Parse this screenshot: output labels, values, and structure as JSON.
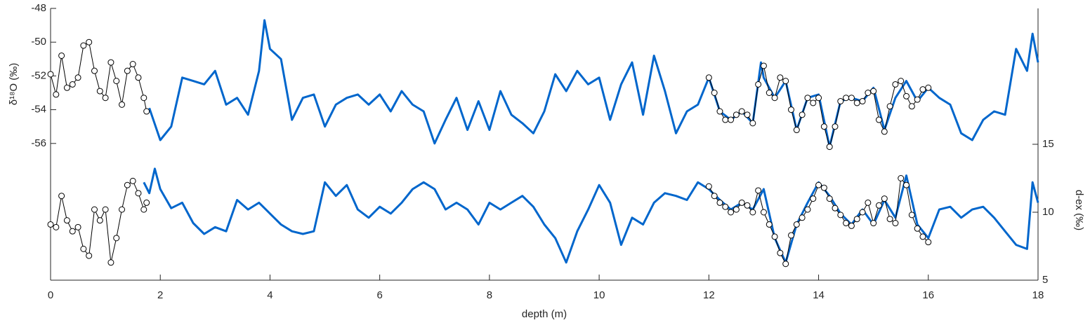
{
  "chart_data": {
    "type": "line",
    "xlabel": "depth (m)",
    "ylabel": "δ¹⁸O (‰)",
    "y2label": "d-ex (‰)",
    "xlim": [
      0,
      18
    ],
    "xticks": [
      0,
      2,
      4,
      6,
      8,
      10,
      12,
      14,
      16,
      18
    ],
    "ylim": [
      -64.1,
      -48
    ],
    "yticks": [
      -56,
      -54,
      -52,
      -50,
      -48
    ],
    "y2lim": [
      5,
      25
    ],
    "y2ticks": [
      5,
      10,
      15
    ],
    "series": [
      {
        "color": "#0066cc",
        "marker": "none",
        "x": [
          1.8,
          2.0,
          2.2,
          2.4,
          2.6,
          2.8,
          3.0,
          3.2,
          3.4,
          3.6,
          3.8,
          3.9,
          4.0,
          4.2,
          4.4,
          4.6,
          4.8,
          5.0,
          5.2,
          5.4,
          5.6,
          5.8,
          6.0,
          6.2,
          6.4,
          6.6,
          6.8,
          7.0,
          7.2,
          7.4,
          7.6,
          7.8,
          8.0,
          8.2,
          8.4,
          8.6,
          8.8,
          9.0,
          9.2,
          9.4,
          9.6,
          9.8,
          10.0,
          10.2,
          10.4,
          10.6,
          10.8,
          11.0,
          11.2,
          11.4,
          11.6,
          11.8,
          12.0,
          12.2,
          12.4,
          12.6,
          12.8,
          12.95,
          13.0,
          13.2,
          13.4,
          13.6,
          13.8,
          14.0,
          14.2,
          14.4,
          14.6,
          14.8,
          15.0,
          15.2,
          15.4,
          15.6,
          15.8,
          16.0,
          16.2,
          16.4,
          16.6,
          16.8,
          17.0,
          17.2,
          17.4,
          17.6,
          17.8,
          17.9,
          18.0
        ],
        "values": [
          -53.9,
          -55.8,
          -55.0,
          -52.1,
          -52.3,
          -52.5,
          -51.7,
          -53.7,
          -53.3,
          -54.3,
          -51.7,
          -48.7,
          -50.4,
          -51.0,
          -54.6,
          -53.3,
          -53.1,
          -55.0,
          -53.7,
          -53.3,
          -53.1,
          -53.7,
          -53.1,
          -54.1,
          -52.9,
          -53.7,
          -54.1,
          -56.0,
          -54.6,
          -53.3,
          -55.2,
          -53.5,
          -55.2,
          -52.9,
          -54.3,
          -54.8,
          -55.4,
          -54.1,
          -51.9,
          -52.9,
          -51.7,
          -52.5,
          -52.1,
          -54.6,
          -52.5,
          -51.2,
          -54.3,
          -50.8,
          -52.9,
          -55.4,
          -54.1,
          -53.7,
          -52.1,
          -54.1,
          -54.6,
          -54.1,
          -54.8,
          -51.2,
          -52.1,
          -53.3,
          -52.3,
          -55.2,
          -53.3,
          -53.1,
          -56.2,
          -53.5,
          -53.3,
          -53.5,
          -52.7,
          -55.2,
          -53.3,
          -52.3,
          -53.5,
          -52.7,
          -53.3,
          -53.7,
          -55.4,
          -55.8,
          -54.6,
          -54.1,
          -54.3,
          -50.4,
          -51.7,
          -49.5,
          -51.2
        ]
      },
      {
        "color": "#000000",
        "marker": "o",
        "x": [
          0,
          0.1,
          0.2,
          0.3,
          0.4,
          0.5,
          0.6,
          0.7,
          0.8,
          0.9,
          1.0,
          1.1,
          1.2,
          1.3,
          1.4,
          1.5,
          1.6,
          1.7,
          1.75
        ],
        "values": [
          -51.9,
          -53.1,
          -50.8,
          -52.7,
          -52.5,
          -52.1,
          -50.2,
          -50.0,
          -51.7,
          -52.9,
          -53.3,
          -51.2,
          -52.3,
          -53.7,
          -51.7,
          -51.3,
          -52.1,
          -53.3,
          -54.1
        ]
      },
      {
        "color": "#000000",
        "marker": "o",
        "x": [
          12.0,
          12.1,
          12.2,
          12.3,
          12.4,
          12.5,
          12.6,
          12.7,
          12.8,
          12.9,
          13.0,
          13.1,
          13.2,
          13.3,
          13.4,
          13.5,
          13.6,
          13.7,
          13.8,
          13.9,
          14.0,
          14.1,
          14.2,
          14.3,
          14.4,
          14.5,
          14.6,
          14.7,
          14.8,
          14.9,
          15.0,
          15.1,
          15.2,
          15.3,
          15.4,
          15.5,
          15.6,
          15.7,
          15.8,
          15.9,
          16.0
        ],
        "values": [
          -52.1,
          -53.0,
          -54.1,
          -54.6,
          -54.6,
          -54.3,
          -54.1,
          -54.3,
          -54.8,
          -52.5,
          -51.4,
          -53.0,
          -53.3,
          -52.1,
          -52.3,
          -54.0,
          -55.2,
          -54.3,
          -53.3,
          -53.6,
          -53.3,
          -55.0,
          -56.2,
          -55.0,
          -53.5,
          -53.3,
          -53.3,
          -53.6,
          -53.5,
          -53.0,
          -52.9,
          -54.6,
          -55.3,
          -53.8,
          -52.5,
          -52.3,
          -53.2,
          -53.8,
          -53.4,
          -52.8,
          -52.7
        ]
      },
      {
        "color": "#0066cc",
        "marker": "none",
        "axis": "y2",
        "x": [
          1.7,
          1.8,
          1.9,
          2.0,
          2.2,
          2.4,
          2.6,
          2.8,
          3.0,
          3.2,
          3.4,
          3.6,
          3.8,
          4.0,
          4.2,
          4.4,
          4.6,
          4.8,
          5.0,
          5.2,
          5.4,
          5.6,
          5.8,
          6.0,
          6.2,
          6.4,
          6.6,
          6.8,
          7.0,
          7.2,
          7.4,
          7.6,
          7.8,
          8.0,
          8.2,
          8.4,
          8.6,
          8.8,
          9.0,
          9.2,
          9.4,
          9.6,
          9.8,
          10.0,
          10.2,
          10.4,
          10.6,
          10.8,
          11.0,
          11.2,
          11.4,
          11.6,
          11.8,
          12.0,
          12.2,
          12.4,
          12.6,
          12.8,
          13.0,
          13.2,
          13.4,
          13.6,
          13.8,
          14.0,
          14.2,
          14.4,
          14.6,
          14.8,
          15.0,
          15.2,
          15.4,
          15.6,
          15.8,
          16.0,
          16.2,
          16.4,
          16.6,
          16.8,
          17.0,
          17.2,
          17.4,
          17.6,
          17.8,
          17.9,
          18.0
        ],
        "values": [
          12.2,
          11.4,
          13.2,
          11.7,
          10.3,
          10.7,
          9.2,
          8.4,
          8.9,
          8.6,
          10.9,
          10.2,
          10.7,
          9.9,
          9.1,
          8.6,
          8.4,
          8.6,
          12.2,
          11.2,
          12.0,
          10.2,
          9.6,
          10.4,
          9.9,
          10.7,
          11.7,
          12.2,
          11.7,
          10.2,
          10.7,
          10.2,
          9.1,
          10.7,
          10.2,
          10.7,
          11.2,
          10.4,
          9.1,
          8.1,
          6.3,
          8.6,
          10.2,
          12.0,
          10.7,
          7.6,
          9.6,
          9.1,
          10.7,
          11.4,
          11.2,
          10.9,
          12.2,
          11.7,
          10.9,
          10.2,
          10.7,
          10.2,
          11.7,
          8.1,
          6.3,
          9.1,
          10.7,
          12.2,
          11.2,
          9.9,
          9.1,
          10.2,
          9.1,
          10.9,
          9.6,
          12.7,
          9.1,
          8.1,
          10.2,
          10.4,
          9.6,
          10.2,
          10.4,
          9.6,
          8.6,
          7.6,
          7.3,
          12.2,
          10.7
        ]
      },
      {
        "color": "#000000",
        "marker": "o",
        "axis": "y2",
        "x": [
          0,
          0.1,
          0.2,
          0.3,
          0.4,
          0.5,
          0.6,
          0.7,
          0.8,
          0.9,
          1.0,
          1.1,
          1.2,
          1.3,
          1.4,
          1.5,
          1.6,
          1.7,
          1.75
        ],
        "values": [
          9.1,
          8.9,
          11.2,
          9.4,
          8.6,
          8.9,
          7.3,
          6.8,
          10.2,
          9.4,
          10.2,
          6.3,
          8.1,
          10.2,
          12.0,
          12.3,
          11.4,
          10.2,
          10.7
        ]
      },
      {
        "color": "#000000",
        "marker": "o",
        "axis": "y2",
        "x": [
          12.0,
          12.1,
          12.2,
          12.3,
          12.4,
          12.5,
          12.6,
          12.7,
          12.8,
          12.9,
          13.0,
          13.1,
          13.2,
          13.3,
          13.4,
          13.5,
          13.6,
          13.7,
          13.8,
          13.9,
          14.0,
          14.1,
          14.2,
          14.3,
          14.4,
          14.5,
          14.6,
          14.7,
          14.8,
          14.9,
          15.0,
          15.1,
          15.2,
          15.3,
          15.4,
          15.5,
          15.6,
          15.7,
          15.8,
          15.9,
          16.0
        ],
        "values": [
          11.9,
          11.2,
          10.7,
          10.4,
          10.0,
          10.2,
          10.7,
          10.5,
          10.0,
          11.6,
          10.0,
          9.1,
          8.2,
          7.0,
          6.2,
          8.3,
          9.1,
          9.6,
          10.2,
          11.0,
          12.0,
          11.8,
          11.0,
          10.3,
          9.8,
          9.2,
          9.0,
          9.5,
          10.0,
          10.7,
          9.2,
          10.5,
          11.0,
          9.5,
          9.2,
          12.5,
          12.0,
          9.8,
          8.8,
          8.2,
          7.8
        ]
      }
    ]
  }
}
